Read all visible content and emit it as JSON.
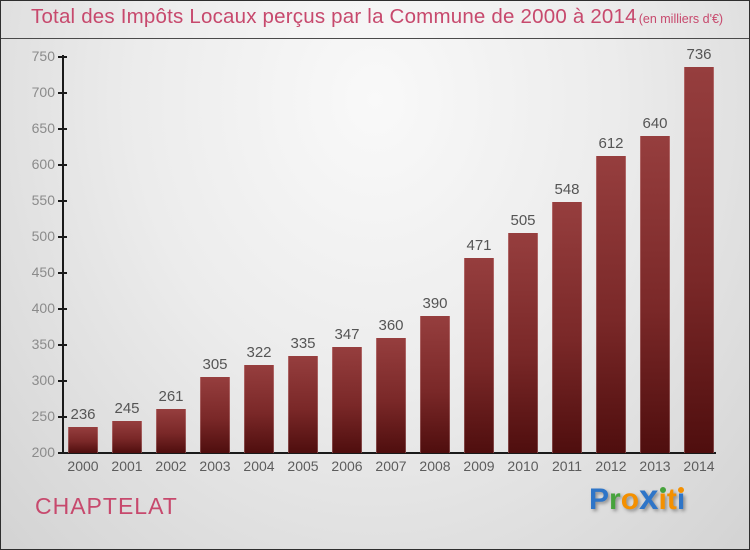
{
  "header": {
    "title": "Total des Impôts Locaux perçus par la Commune de 2000 à 2014",
    "subtitle": "(en milliers d'€)",
    "title_color": "#c7496d"
  },
  "chart_data": {
    "type": "bar",
    "title": "Total des Impôts Locaux perçus par la Commune de 2000 à 2014",
    "subtitle": "(en milliers d'€)",
    "unit": "milliers d'€",
    "categories": [
      "2000",
      "2001",
      "2002",
      "2003",
      "2004",
      "2005",
      "2006",
      "2007",
      "2008",
      "2009",
      "2010",
      "2011",
      "2012",
      "2013",
      "2014"
    ],
    "values": [
      236,
      245,
      261,
      305,
      322,
      335,
      347,
      360,
      390,
      471,
      505,
      548,
      612,
      640,
      736
    ],
    "xlabel": "",
    "ylabel": "",
    "ylim": [
      200,
      750
    ],
    "ytick_step": 50,
    "grid": false,
    "legend": "none",
    "bar_color_top": "#963e3e",
    "bar_color_bottom": "#4f0e0e",
    "axis_color": "#1a1a1a",
    "ytick_label_color": "#8b8b8b",
    "value_label_color": "#555555"
  },
  "footer": {
    "commune": "CHAPTELAT",
    "logo": {
      "name": "Proxiti",
      "letters": [
        {
          "char": "P",
          "color": "#2e75c8"
        },
        {
          "char": "r",
          "color": "#46a33c"
        },
        {
          "char": "o",
          "color": "#f49000"
        },
        {
          "char": "x",
          "color": "#2e75c8",
          "big": true
        },
        {
          "char": "i",
          "color": "#f49000",
          "dot_color": "#46a33c"
        },
        {
          "char": "t",
          "color": "#f49000"
        },
        {
          "char": "i",
          "color": "#2e75c8",
          "dot_color": "#f49000"
        }
      ]
    }
  }
}
